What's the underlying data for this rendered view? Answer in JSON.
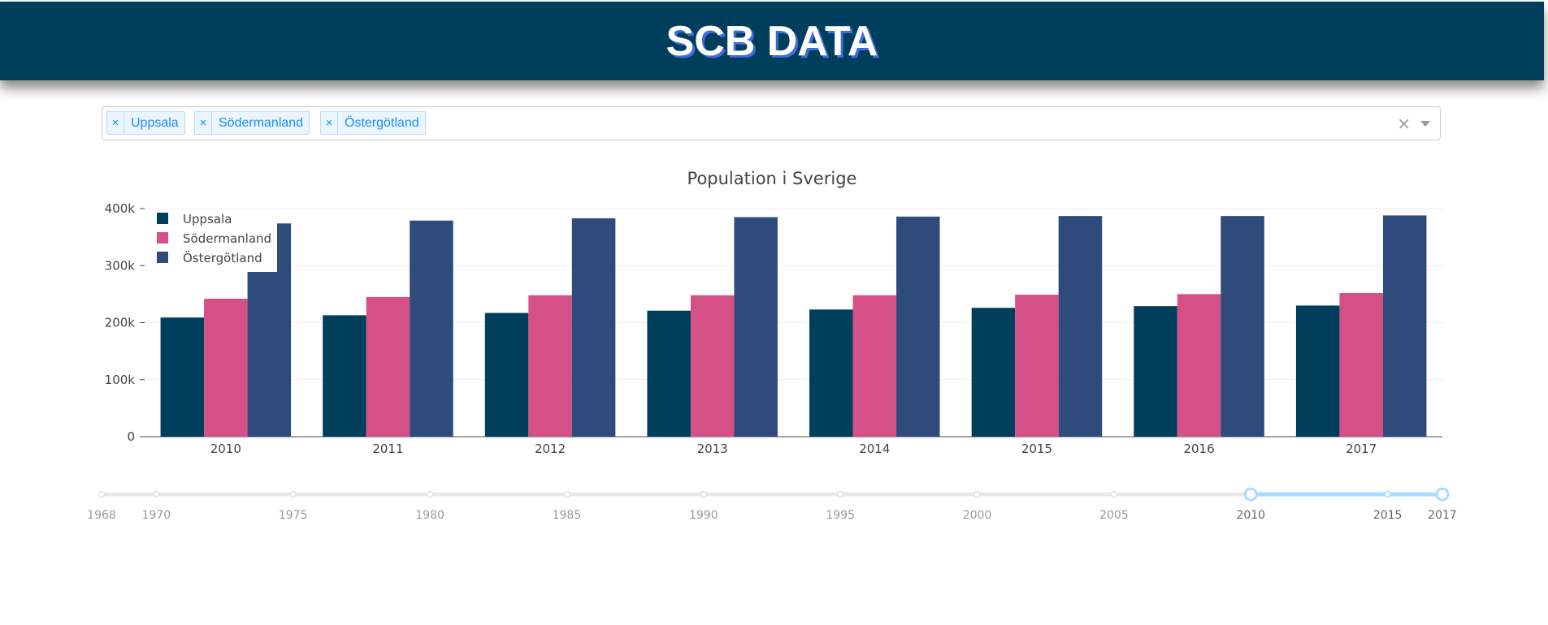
{
  "header": {
    "title": "SCB DATA"
  },
  "dropdown": {
    "selected": [
      "Uppsala",
      "Södermanland",
      "Östergötland"
    ],
    "remove_symbol": "×",
    "clear_symbol": "×"
  },
  "colors": {
    "header_bg": "#003f5c",
    "uppsala": "#003f5c",
    "sodermanland": "#d45087",
    "ostergotland": "#2f4b7c",
    "slider_active": "#a6dcff"
  },
  "chart_data": {
    "type": "bar",
    "title": "Population i Sverige",
    "xlabel": "",
    "ylabel": "",
    "categories": [
      "2010",
      "2011",
      "2012",
      "2013",
      "2014",
      "2015",
      "2016",
      "2017"
    ],
    "series": [
      {
        "name": "Uppsala",
        "color": "#003f5c",
        "values": [
          209000,
          213000,
          217000,
          221000,
          223000,
          226000,
          229000,
          230000
        ]
      },
      {
        "name": "Södermanland",
        "color": "#d45087",
        "values": [
          242000,
          245000,
          248000,
          248000,
          248000,
          249000,
          250000,
          252000
        ]
      },
      {
        "name": "Östergötland",
        "color": "#2f4b7c",
        "values": [
          374000,
          379000,
          383000,
          385000,
          386000,
          387000,
          387000,
          388000
        ]
      }
    ],
    "ylim": [
      0,
      400000
    ],
    "yticks": [
      0,
      100000,
      200000,
      300000,
      400000
    ],
    "ytick_labels": [
      "0",
      "100k",
      "200k",
      "300k",
      "400k"
    ],
    "grid": true,
    "legend": "top-left"
  },
  "slider": {
    "marks": [
      "1968",
      "1970",
      "1975",
      "1980",
      "1985",
      "1990",
      "1995",
      "2000",
      "2005",
      "2010",
      "2015",
      "2017"
    ],
    "min": 1968,
    "max": 2017,
    "range": [
      2010,
      2017
    ]
  }
}
